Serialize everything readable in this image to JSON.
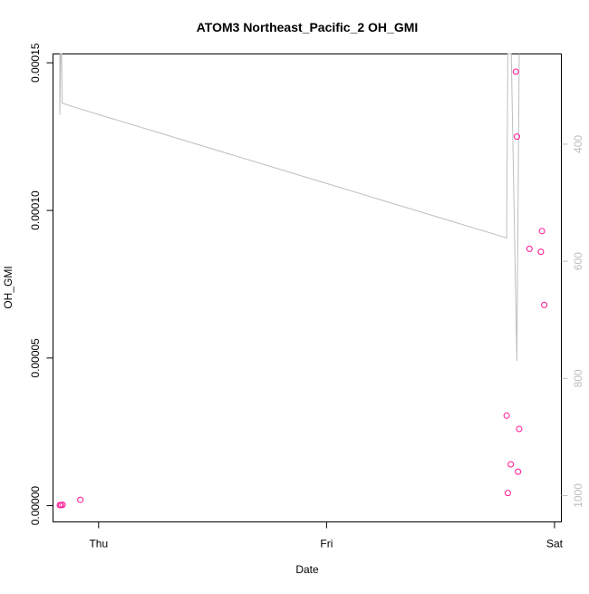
{
  "chart_data": {
    "type": "scatter",
    "title": "ATOM3 Northeast_Pacific_2 OH_GMI",
    "xlabel": "Date",
    "ylabel": "OH_GMI",
    "x_ticks": [
      {
        "label": "Thu",
        "day": 0
      },
      {
        "label": "Fri",
        "day": 1
      },
      {
        "label": "Sat",
        "day": 2
      }
    ],
    "xlim_days": [
      -0.2,
      2.03
    ],
    "ylim": [
      -5.5e-06,
      0.000153
    ],
    "y_ticks": [
      {
        "label": "0.00000",
        "value": 0.0
      },
      {
        "label": "0.00005",
        "value": 5e-05
      },
      {
        "label": "0.00010",
        "value": 0.0001
      },
      {
        "label": "0.00015",
        "value": 0.00015
      }
    ],
    "y2_reversed": true,
    "y2lim": [
      1045,
      246
    ],
    "y2_ticks": [
      {
        "label": "400",
        "value": 400
      },
      {
        "label": "600",
        "value": 600
      },
      {
        "label": "800",
        "value": 800
      },
      {
        "label": "1000",
        "value": 1000
      }
    ],
    "series": [
      {
        "color": "#ff1493",
        "marker": "circle-open",
        "points": [
          {
            "x": -0.17,
            "y": 2e-07
          },
          {
            "x": -0.165,
            "y": 2e-07
          },
          {
            "x": -0.158,
            "y": 3e-07
          },
          {
            "x": -0.08,
            "y": 2e-06
          },
          {
            "x": 1.79,
            "y": 3.05e-05
          },
          {
            "x": 1.795,
            "y": 4.3e-06
          },
          {
            "x": 1.808,
            "y": 1.4e-05
          },
          {
            "x": 1.83,
            "y": 0.000147
          },
          {
            "x": 1.835,
            "y": 0.000125
          },
          {
            "x": 1.84,
            "y": 1.15e-05
          },
          {
            "x": 1.845,
            "y": 2.6e-05
          },
          {
            "x": 1.89,
            "y": 8.7e-05
          },
          {
            "x": 1.94,
            "y": 8.6e-05
          },
          {
            "x": 1.945,
            "y": 9.3e-05
          },
          {
            "x": 1.955,
            "y": 6.8e-05
          }
        ]
      },
      {
        "color": "#bebebe",
        "axis": "right",
        "line": [
          {
            "x": -0.17,
            "y": 240
          },
          {
            "x": -0.17,
            "y": 350
          },
          {
            "x": -0.166,
            "y": 240
          },
          {
            "x": -0.162,
            "y": 240
          },
          {
            "x": -0.16,
            "y": 330
          },
          {
            "x": -0.08,
            "y": 340
          },
          {
            "x": 1.79,
            "y": 560
          },
          {
            "x": 1.795,
            "y": 240
          },
          {
            "x": 1.81,
            "y": 240
          },
          {
            "x": 1.835,
            "y": 770
          },
          {
            "x": 1.845,
            "y": 240
          }
        ]
      }
    ]
  }
}
